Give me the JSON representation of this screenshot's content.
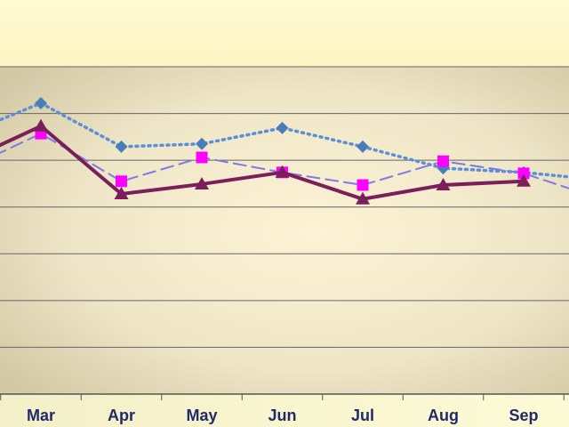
{
  "chart_data": {
    "type": "line",
    "categories": [
      null,
      "Mar",
      "Apr",
      "May",
      "Jun",
      "Jul",
      "Aug",
      "Sep",
      null
    ],
    "series": [
      {
        "color": "#4a7ebb",
        "line_color": "#5b8fd6",
        "dash": "dotted",
        "marker": "diamond",
        "values": [
          5.52,
          6.22,
          5.29,
          5.35,
          5.69,
          5.29,
          4.83,
          4.74,
          4.57
        ]
      },
      {
        "color": "#ff00ff",
        "line_color": "#7b7bea",
        "dash": "dashed",
        "marker": "square",
        "values": [
          4.76,
          5.57,
          4.55,
          5.06,
          4.74,
          4.47,
          4.98,
          4.72,
          4.15
        ]
      },
      {
        "color": "#7a1f5a",
        "line_color": "#7a1f5a",
        "dash": "solid",
        "marker": "triangle",
        "values": [
          4.93,
          5.73,
          4.28,
          4.49,
          4.74,
          4.17,
          4.47,
          4.55,
          null
        ]
      }
    ],
    "ylim": [
      0,
      7
    ],
    "ygrid": [
      0,
      1,
      2,
      3,
      4,
      5,
      6,
      7
    ],
    "grid": true
  }
}
